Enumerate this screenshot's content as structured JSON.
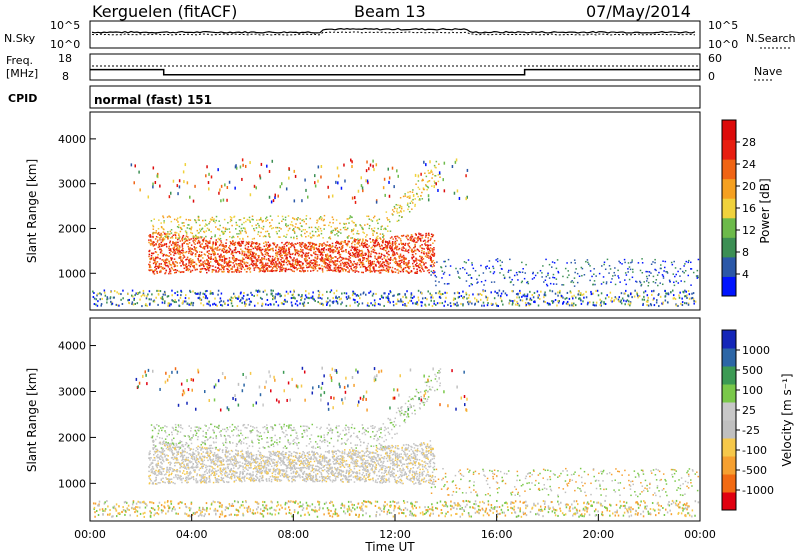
{
  "header": {
    "radar": "Kerguelen (fitACF)",
    "beam": "Beam 13",
    "date": "07/May/2014"
  },
  "noise_panel": {
    "left_label": "N.Sky",
    "right_label": "N.Search",
    "left_ticks": [
      "10^5",
      "10^0"
    ],
    "right_ticks": [
      "10^5",
      "10^0"
    ]
  },
  "freq_panel": {
    "left_label_line1": "Freq.",
    "left_label_line2": "[MHz]",
    "left_ticks": [
      "18",
      "8"
    ],
    "right_label": "Nave",
    "right_ticks": [
      "60",
      "0"
    ],
    "cpid_label": "CPID",
    "cpid_value": "normal (fast) 151"
  },
  "colors": {
    "power_scale": [
      "#0014ff",
      "#2b58a8",
      "#3c8f54",
      "#6cba4a",
      "#f0d23c",
      "#f5a020",
      "#f06414",
      "#e81e10",
      "#dc0a0a"
    ],
    "velocity_scale": [
      "#e00010",
      "#f26a12",
      "#f6a030",
      "#f6c84a",
      "#c0c0c0",
      "#c8c8c8",
      "#7ac84a",
      "#3c9a54",
      "#2c66a6",
      "#1426b8"
    ]
  },
  "chart_data": [
    {
      "type": "heatmap",
      "name": "power",
      "ylabel": "Slant Range [km]",
      "ylim": [
        180,
        4600
      ],
      "yticks": [
        1000,
        2000,
        3000,
        4000
      ],
      "colorbar_label": "Power [dB]",
      "colorbar_ticks": [
        "4",
        "8",
        "12",
        "16",
        "20",
        "24",
        "28"
      ],
      "xlim": [
        0,
        24
      ]
    },
    {
      "type": "heatmap",
      "name": "velocity",
      "ylabel": "Slant Range [km]",
      "ylim": [
        180,
        4600
      ],
      "yticks": [
        1000,
        2000,
        3000,
        4000
      ],
      "colorbar_label": "Velocity [m s⁻¹]",
      "colorbar_ticks": [
        "-1000",
        "-500",
        "-100",
        "-25",
        "25",
        "100",
        "500",
        "1000"
      ],
      "xlim": [
        0,
        24
      ]
    },
    {
      "type": "line",
      "name": "frequency",
      "x": [
        0,
        2.9,
        2.9,
        17.1,
        17.1,
        24
      ],
      "y": [
        12,
        12,
        10,
        10,
        12,
        12
      ],
      "ylim": [
        8,
        18
      ]
    }
  ],
  "x_axis": {
    "ticks": [
      "00:00",
      "04:00",
      "08:00",
      "12:00",
      "16:00",
      "20:00",
      "00:00"
    ],
    "label": "Time UT"
  }
}
